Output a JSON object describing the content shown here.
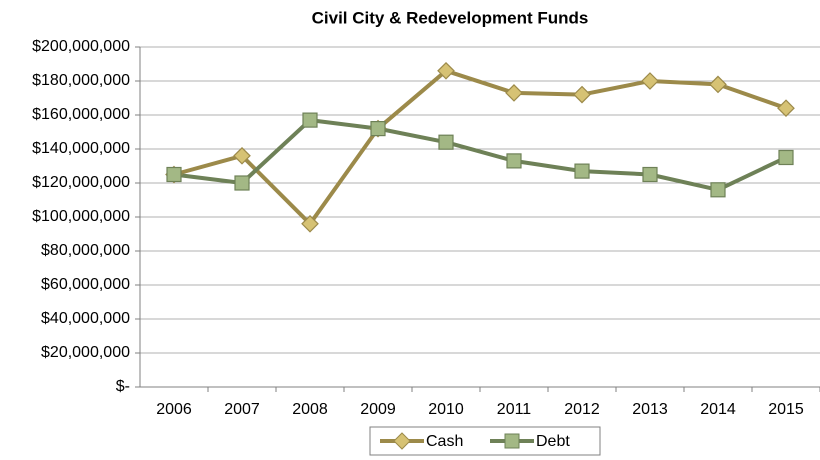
{
  "chart_data": {
    "type": "line",
    "title": "Civil City & Redevelopment Funds",
    "categories": [
      "2006",
      "2007",
      "2008",
      "2009",
      "2010",
      "2011",
      "2012",
      "2013",
      "2014",
      "2015"
    ],
    "series": [
      {
        "name": "Cash",
        "color": "#9c8a4a",
        "marker": "diamond",
        "marker_color": "#d6c274",
        "values": [
          125000000,
          136000000,
          96000000,
          152000000,
          186000000,
          173000000,
          172000000,
          180000000,
          178000000,
          164000000
        ]
      },
      {
        "name": "Debt",
        "color": "#6e8157",
        "marker": "square",
        "marker_color": "#a3b885",
        "values": [
          125000000,
          120000000,
          157000000,
          152000000,
          144000000,
          133000000,
          127000000,
          125000000,
          116000000,
          135000000
        ]
      }
    ],
    "ylim": [
      0,
      200000000
    ],
    "yticks": [
      {
        "value": 0,
        "label": "$-"
      },
      {
        "value": 20000000,
        "label": "$20,000,000"
      },
      {
        "value": 40000000,
        "label": "$40,000,000"
      },
      {
        "value": 60000000,
        "label": "$60,000,000"
      },
      {
        "value": 80000000,
        "label": "$80,000,000"
      },
      {
        "value": 100000000,
        "label": "$100,000,000"
      },
      {
        "value": 120000000,
        "label": "$120,000,000"
      },
      {
        "value": 140000000,
        "label": "$140,000,000"
      },
      {
        "value": 160000000,
        "label": "$160,000,000"
      },
      {
        "value": 180000000,
        "label": "$180,000,000"
      },
      {
        "value": 200000000,
        "label": "$200,000,000"
      }
    ],
    "grid": true,
    "legend": "bottom"
  }
}
